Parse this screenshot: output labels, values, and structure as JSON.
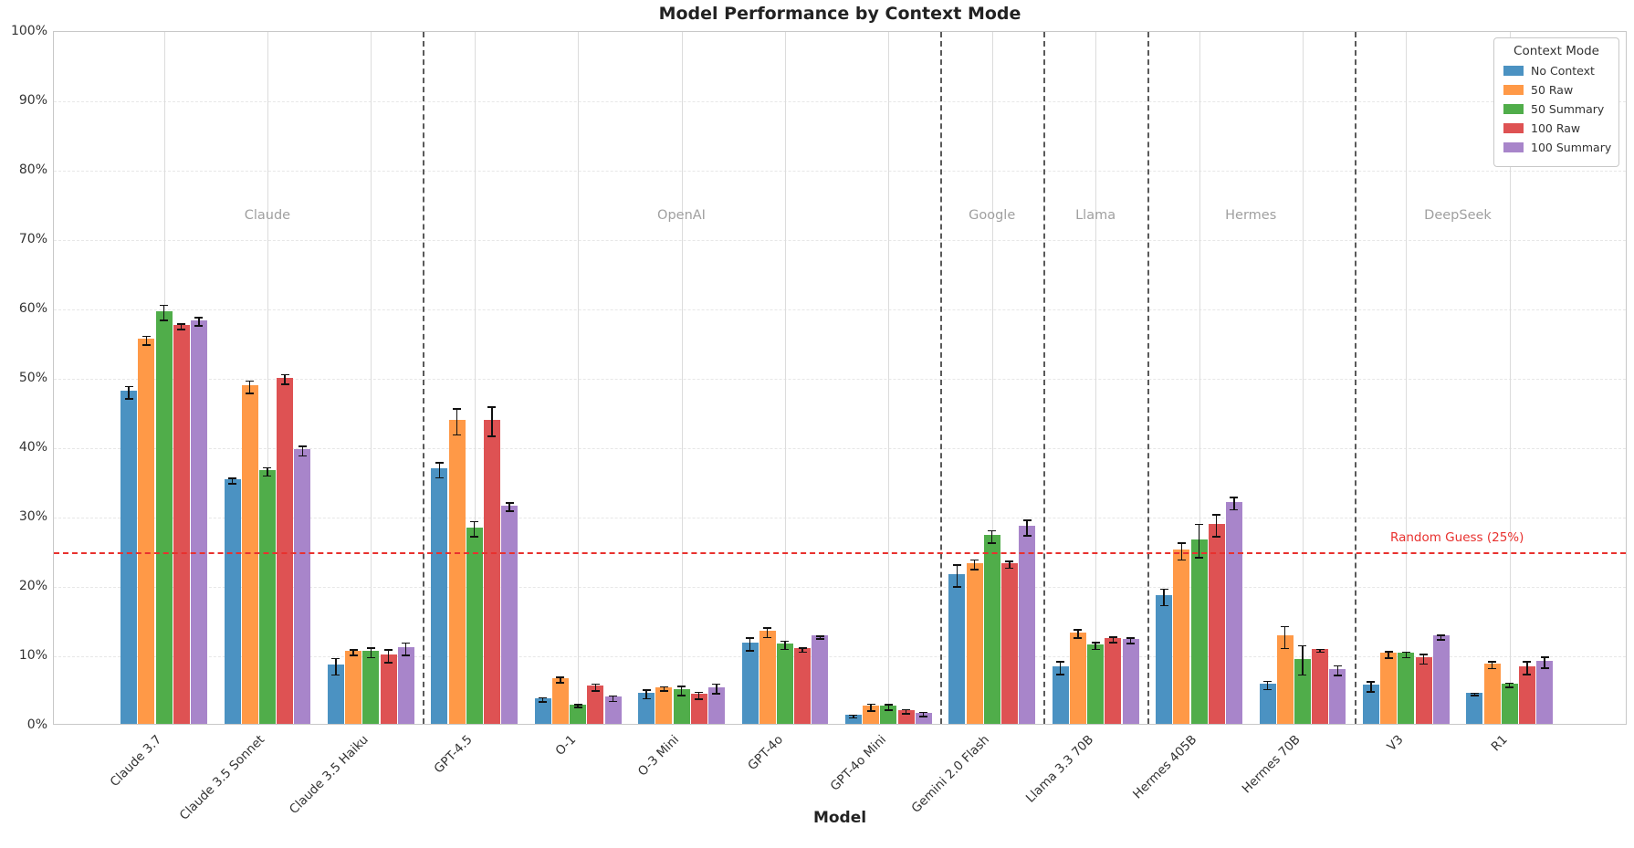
{
  "title": "Model Performance by Context Mode",
  "axes": {
    "x_label": "Model",
    "y_tick_labels": [
      "0%",
      "10%",
      "20%",
      "30%",
      "40%",
      "50%",
      "60%",
      "70%",
      "80%",
      "90%",
      "100%"
    ]
  },
  "legend": {
    "title": "Context Mode",
    "entries": [
      {
        "label": "No Context",
        "color": "#4b92c2"
      },
      {
        "label": "50 Raw",
        "color": "#ff9947"
      },
      {
        "label": "50 Summary",
        "color": "#50ad4a"
      },
      {
        "label": "100 Raw",
        "color": "#de5253"
      },
      {
        "label": "100 Summary",
        "color": "#a885ca"
      }
    ]
  },
  "annotations": {
    "random_guess_label": "Random Guess (25%)",
    "random_guess_value": 25,
    "random_guess_color": "#e8312e"
  },
  "chart_data": {
    "type": "bar",
    "title": "Model Performance by Context Mode",
    "xlabel": "Model",
    "ylabel": "",
    "ylim": [
      0,
      100
    ],
    "y_tick_step": 10,
    "grid": true,
    "legend_position": "upper right",
    "categories": [
      "Claude 3.7",
      "Claude 3.5 Sonnet",
      "Claude 3.5 Haiku",
      "GPT-4.5",
      "O-1",
      "O-3 Mini",
      "GPT-4o",
      "GPT-4o Mini",
      "Gemini 2.0 Flash",
      "Llama 3.3 70B",
      "Hermes 405B",
      "Hermes 70B",
      "V3",
      "R1"
    ],
    "series": [
      {
        "name": "No Context",
        "color": "#4b92c2",
        "values": [
          48.0,
          35.3,
          8.5,
          36.8,
          3.7,
          4.5,
          11.7,
          1.3,
          21.6,
          8.3,
          18.5,
          5.8,
          5.6,
          4.5
        ],
        "errors": [
          1.0,
          0.5,
          1.3,
          1.2,
          0.4,
          0.7,
          1.0,
          0.3,
          1.7,
          1.0,
          1.3,
          0.7,
          0.8,
          0.3
        ]
      },
      {
        "name": "50 Raw",
        "color": "#ff9947",
        "values": [
          55.5,
          48.8,
          10.5,
          43.8,
          6.6,
          5.3,
          13.4,
          2.6,
          23.2,
          13.2,
          25.1,
          12.7,
          10.2,
          8.7
        ],
        "errors": [
          0.7,
          1.0,
          0.5,
          2.0,
          0.5,
          0.4,
          0.8,
          0.6,
          0.8,
          0.7,
          1.3,
          1.7,
          0.6,
          0.6
        ]
      },
      {
        "name": "50 Summary",
        "color": "#50ad4a",
        "values": [
          59.5,
          36.6,
          10.5,
          28.3,
          2.8,
          5.0,
          11.6,
          2.6,
          27.2,
          11.5,
          26.6,
          9.4,
          10.2,
          5.8
        ],
        "errors": [
          1.2,
          0.7,
          0.8,
          1.2,
          0.3,
          0.8,
          0.7,
          0.5,
          1.0,
          0.6,
          2.5,
          2.2,
          0.5,
          0.4
        ]
      },
      {
        "name": "100 Raw",
        "color": "#de5253",
        "values": [
          57.5,
          49.9,
          10.0,
          43.8,
          5.5,
          4.3,
          10.9,
          2.0,
          23.2,
          12.4,
          28.8,
          10.8,
          9.6,
          8.3
        ],
        "errors": [
          0.5,
          0.8,
          1.0,
          2.2,
          0.6,
          0.6,
          0.4,
          0.4,
          0.6,
          0.5,
          1.7,
          0.3,
          0.8,
          1.0
        ]
      },
      {
        "name": "100 Summary",
        "color": "#a885ca",
        "values": [
          58.2,
          39.6,
          11.0,
          31.5,
          3.9,
          5.3,
          12.7,
          1.6,
          28.5,
          12.2,
          32.0,
          7.9,
          12.7,
          9.1
        ],
        "errors": [
          0.7,
          0.8,
          1.0,
          0.7,
          0.5,
          0.8,
          0.3,
          0.4,
          1.2,
          0.5,
          1.0,
          0.8,
          0.4,
          0.9
        ]
      }
    ],
    "vendor_groups": [
      {
        "label": "Claude",
        "center_index": 1.0,
        "label_value_pct": 73.4
      },
      {
        "label": "OpenAI",
        "center_index": 5.0,
        "label_value_pct": 73.4
      },
      {
        "label": "Google",
        "center_index": 8.0,
        "label_value_pct": 73.4
      },
      {
        "label": "Llama",
        "center_index": 9.0,
        "label_value_pct": 73.4
      },
      {
        "label": "Hermes",
        "center_index": 10.5,
        "label_value_pct": 73.4
      },
      {
        "label": "DeepSeek",
        "center_index": 12.5,
        "label_value_pct": 73.4
      }
    ],
    "separators_at_index": [
      2.5,
      7.5,
      8.5,
      9.5,
      11.5
    ],
    "reference_line": {
      "value": 25,
      "label": "Random Guess (25%)",
      "style": "dashed",
      "color": "#e8312e"
    }
  }
}
